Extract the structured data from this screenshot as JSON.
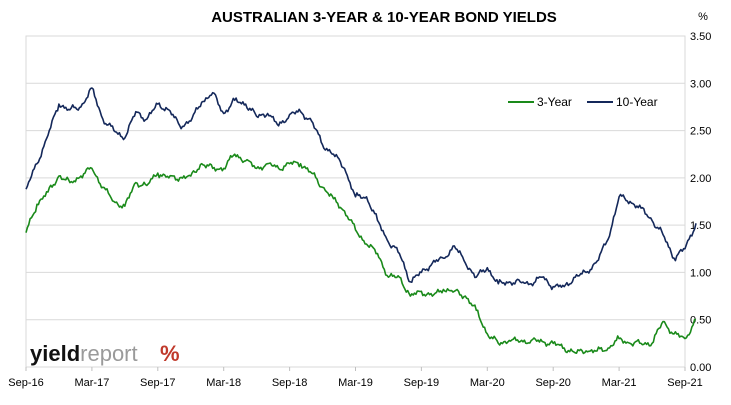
{
  "chart_data": {
    "type": "line",
    "title": "AUSTRALIAN 3-YEAR & 10-YEAR BOND YIELDS",
    "y_unit": "%",
    "ylim": [
      0,
      3.5
    ],
    "y_ticks": [
      "0.00",
      "0.50",
      "1.00",
      "1.50",
      "2.00",
      "2.50",
      "3.00",
      "3.50"
    ],
    "x_ticks": [
      "Sep-16",
      "Mar-17",
      "Sep-17",
      "Mar-18",
      "Sep-18",
      "Mar-19",
      "Sep-19",
      "Mar-20",
      "Sep-20",
      "Mar-21",
      "Sep-21"
    ],
    "grid": true,
    "legend_position": "top-right",
    "series": [
      {
        "name": "3-Year",
        "color": "#1a8a1a",
        "points": [
          [
            "2016-09",
            1.42
          ],
          [
            "2016-10",
            1.72
          ],
          [
            "2016-11",
            1.85
          ],
          [
            "2016-12",
            2.02
          ],
          [
            "2017-01",
            1.95
          ],
          [
            "2017-02",
            2.02
          ],
          [
            "2017-03",
            2.1
          ],
          [
            "2017-04",
            1.9
          ],
          [
            "2017-05",
            1.75
          ],
          [
            "2017-06",
            1.7
          ],
          [
            "2017-07",
            1.95
          ],
          [
            "2017-08",
            1.92
          ],
          [
            "2017-09",
            2.05
          ],
          [
            "2017-10",
            2.0
          ],
          [
            "2017-11",
            2.0
          ],
          [
            "2017-12",
            2.02
          ],
          [
            "2018-01",
            2.15
          ],
          [
            "2018-02",
            2.1
          ],
          [
            "2018-03",
            2.1
          ],
          [
            "2018-04",
            2.25
          ],
          [
            "2018-05",
            2.18
          ],
          [
            "2018-06",
            2.1
          ],
          [
            "2018-07",
            2.15
          ],
          [
            "2018-08",
            2.1
          ],
          [
            "2018-09",
            2.15
          ],
          [
            "2018-10",
            2.15
          ],
          [
            "2018-11",
            2.05
          ],
          [
            "2018-12",
            1.9
          ],
          [
            "2019-01",
            1.78
          ],
          [
            "2019-02",
            1.65
          ],
          [
            "2019-03",
            1.45
          ],
          [
            "2019-04",
            1.3
          ],
          [
            "2019-05",
            1.2
          ],
          [
            "2019-06",
            0.95
          ],
          [
            "2019-07",
            0.95
          ],
          [
            "2019-08",
            0.75
          ],
          [
            "2019-09",
            0.8
          ],
          [
            "2019-10",
            0.75
          ],
          [
            "2019-11",
            0.82
          ],
          [
            "2019-12",
            0.8
          ],
          [
            "2020-01",
            0.75
          ],
          [
            "2020-02",
            0.6
          ],
          [
            "2020-03",
            0.35
          ],
          [
            "2020-04",
            0.25
          ],
          [
            "2020-05",
            0.28
          ],
          [
            "2020-06",
            0.27
          ],
          [
            "2020-07",
            0.28
          ],
          [
            "2020-08",
            0.27
          ],
          [
            "2020-09",
            0.25
          ],
          [
            "2020-10",
            0.2
          ],
          [
            "2020-11",
            0.15
          ],
          [
            "2020-12",
            0.17
          ],
          [
            "2021-01",
            0.17
          ],
          [
            "2021-02",
            0.2
          ],
          [
            "2021-03",
            0.3
          ],
          [
            "2021-04",
            0.25
          ],
          [
            "2021-05",
            0.25
          ],
          [
            "2021-06",
            0.25
          ],
          [
            "2021-07",
            0.48
          ],
          [
            "2021-08",
            0.35
          ],
          [
            "2021-09",
            0.3
          ],
          [
            "2021-10",
            0.5
          ]
        ]
      },
      {
        "name": "10-Year",
        "color": "#14285a",
        "points": [
          [
            "2016-09",
            1.88
          ],
          [
            "2016-10",
            2.15
          ],
          [
            "2016-11",
            2.45
          ],
          [
            "2016-12",
            2.78
          ],
          [
            "2017-01",
            2.72
          ],
          [
            "2017-02",
            2.75
          ],
          [
            "2017-03",
            2.95
          ],
          [
            "2017-04",
            2.62
          ],
          [
            "2017-05",
            2.5
          ],
          [
            "2017-06",
            2.42
          ],
          [
            "2017-07",
            2.7
          ],
          [
            "2017-08",
            2.62
          ],
          [
            "2017-09",
            2.78
          ],
          [
            "2017-10",
            2.72
          ],
          [
            "2017-11",
            2.55
          ],
          [
            "2017-12",
            2.6
          ],
          [
            "2018-01",
            2.8
          ],
          [
            "2018-02",
            2.9
          ],
          [
            "2018-03",
            2.68
          ],
          [
            "2018-04",
            2.82
          ],
          [
            "2018-05",
            2.78
          ],
          [
            "2018-06",
            2.65
          ],
          [
            "2018-07",
            2.68
          ],
          [
            "2018-08",
            2.55
          ],
          [
            "2018-09",
            2.67
          ],
          [
            "2018-10",
            2.7
          ],
          [
            "2018-11",
            2.6
          ],
          [
            "2018-12",
            2.35
          ],
          [
            "2019-01",
            2.25
          ],
          [
            "2019-02",
            2.1
          ],
          [
            "2019-03",
            1.8
          ],
          [
            "2019-04",
            1.8
          ],
          [
            "2019-05",
            1.55
          ],
          [
            "2019-06",
            1.32
          ],
          [
            "2019-07",
            1.2
          ],
          [
            "2019-08",
            0.9
          ],
          [
            "2019-09",
            1.0
          ],
          [
            "2019-10",
            1.1
          ],
          [
            "2019-11",
            1.15
          ],
          [
            "2019-12",
            1.28
          ],
          [
            "2020-01",
            1.1
          ],
          [
            "2020-02",
            0.95
          ],
          [
            "2020-03",
            1.05
          ],
          [
            "2020-04",
            0.88
          ],
          [
            "2020-05",
            0.9
          ],
          [
            "2020-06",
            0.9
          ],
          [
            "2020-07",
            0.88
          ],
          [
            "2020-08",
            0.95
          ],
          [
            "2020-09",
            0.85
          ],
          [
            "2020-10",
            0.85
          ],
          [
            "2020-11",
            0.95
          ],
          [
            "2020-12",
            1.0
          ],
          [
            "2021-01",
            1.12
          ],
          [
            "2021-02",
            1.35
          ],
          [
            "2021-03",
            1.8
          ],
          [
            "2021-04",
            1.75
          ],
          [
            "2021-05",
            1.68
          ],
          [
            "2021-06",
            1.55
          ],
          [
            "2021-07",
            1.4
          ],
          [
            "2021-08",
            1.15
          ],
          [
            "2021-09",
            1.25
          ],
          [
            "2021-10",
            1.52
          ]
        ]
      }
    ]
  },
  "branding": {
    "logo_text_dark": "yield",
    "logo_text_light": "report",
    "logo_symbol": "%",
    "logo_dark_color": "#111111",
    "logo_light_color": "#9a9a9a",
    "logo_symbol_colors": [
      "#c0392b",
      "#1a8a1a"
    ]
  }
}
